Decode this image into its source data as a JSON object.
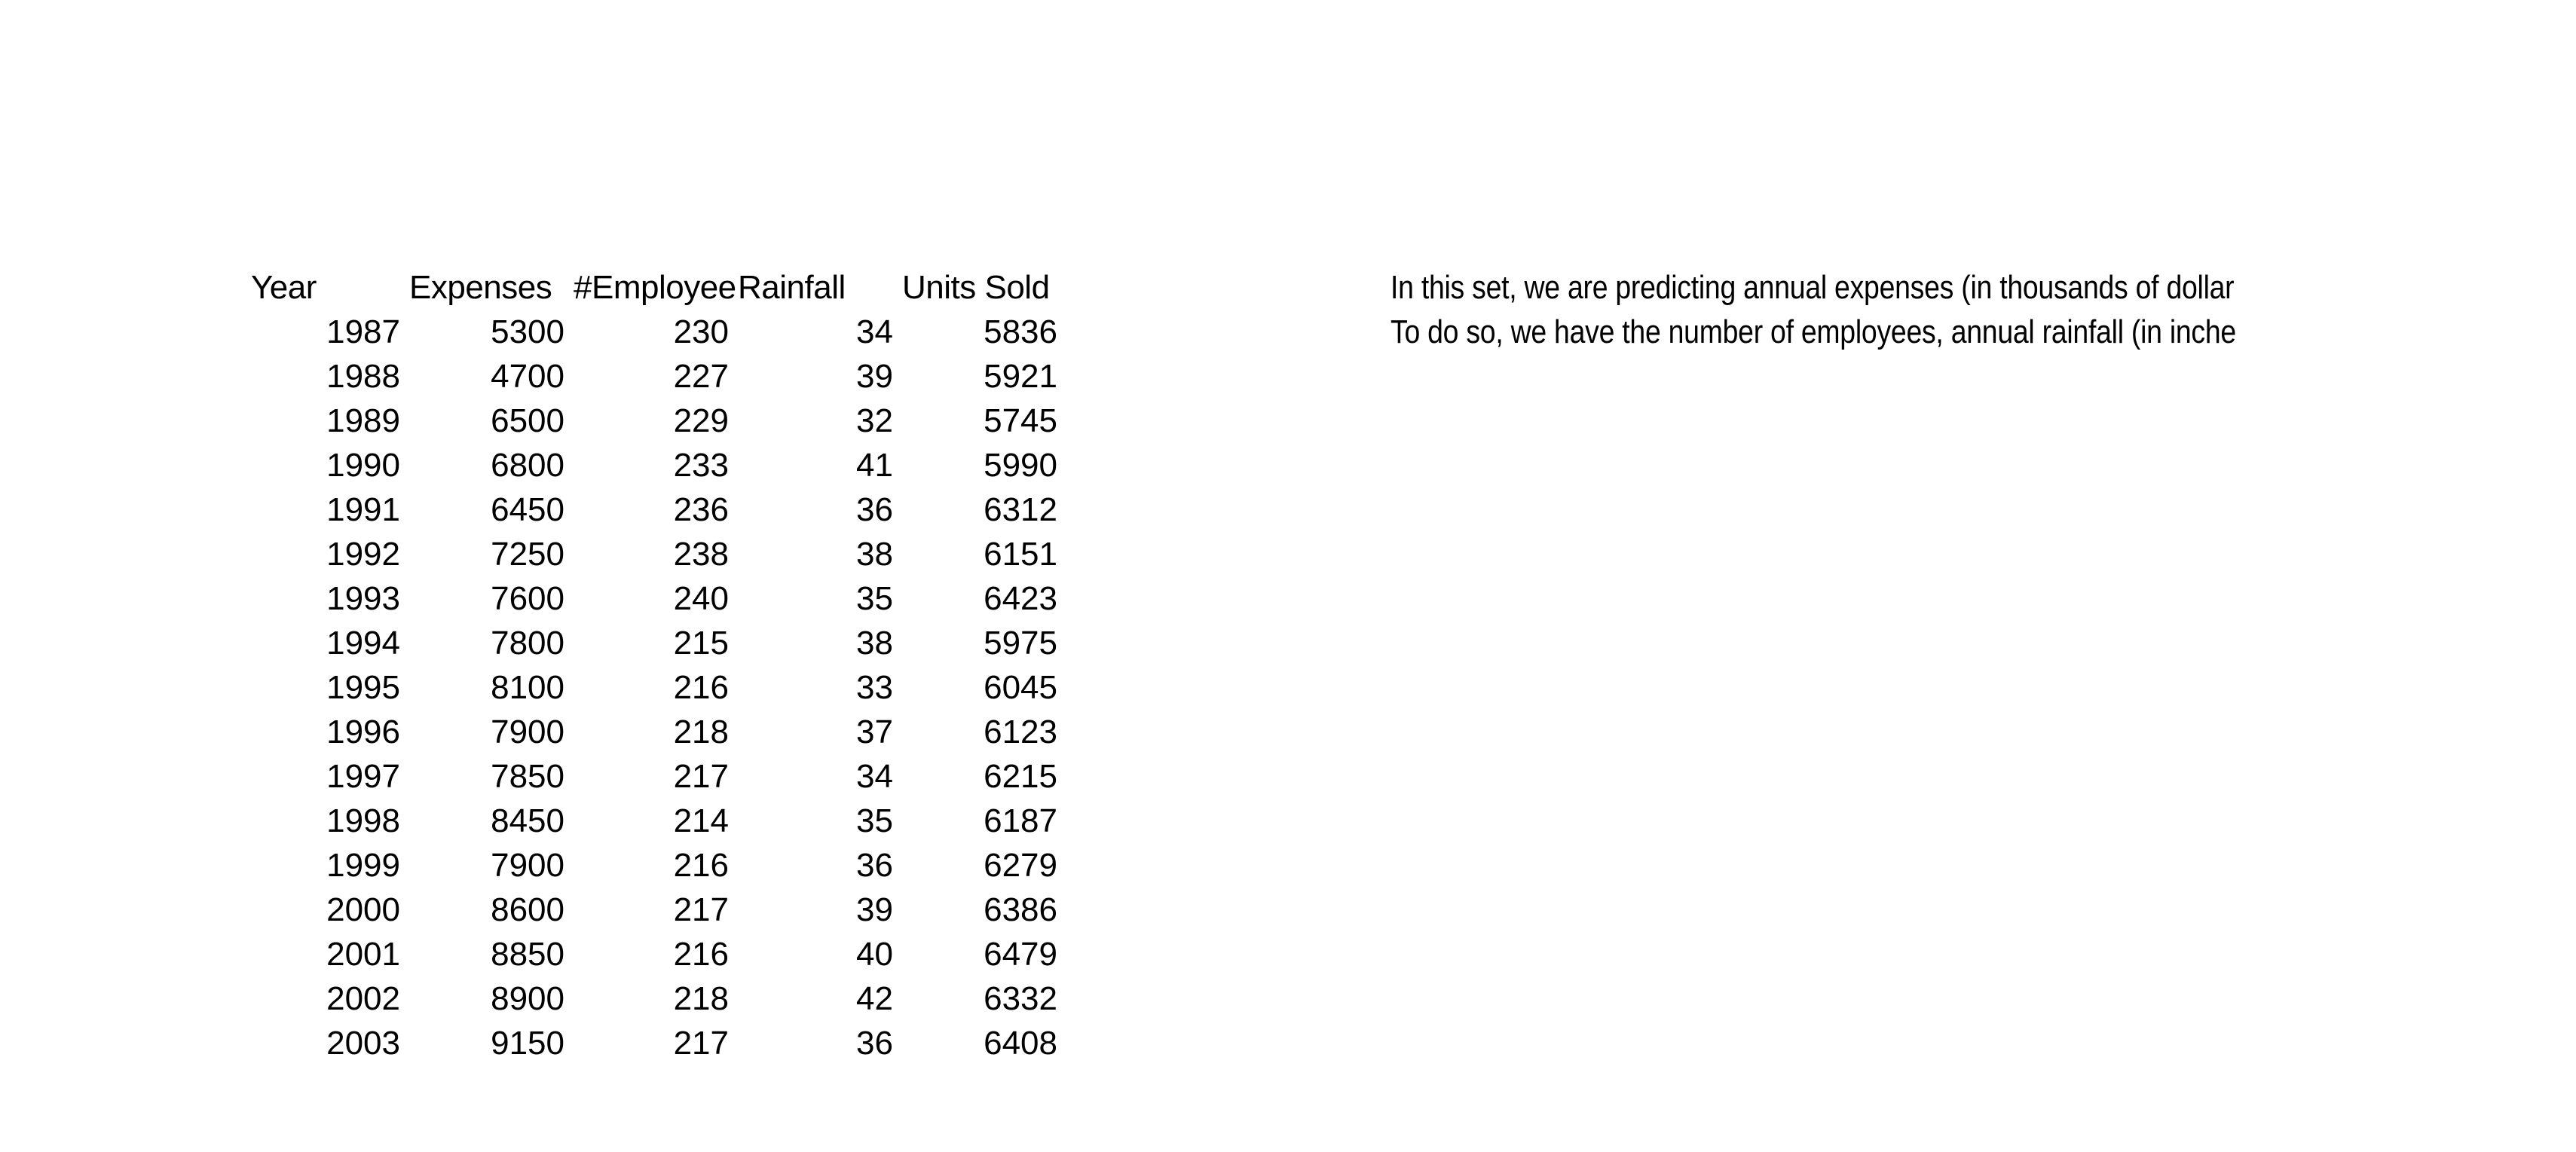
{
  "app": {
    "background_color": "#ffffff",
    "text_color": "#000000"
  },
  "table": {
    "headers": [
      "Year",
      "Expenses",
      "#Employee",
      "Rainfall",
      "Units Sold"
    ],
    "rows": [
      [
        "1987",
        "5300",
        "230",
        "34",
        "5836"
      ],
      [
        "1988",
        "4700",
        "227",
        "39",
        "5921"
      ],
      [
        "1989",
        "6500",
        "229",
        "32",
        "5745"
      ],
      [
        "1990",
        "6800",
        "233",
        "41",
        "5990"
      ],
      [
        "1991",
        "6450",
        "236",
        "36",
        "6312"
      ],
      [
        "1992",
        "7250",
        "238",
        "38",
        "6151"
      ],
      [
        "1993",
        "7600",
        "240",
        "35",
        "6423"
      ],
      [
        "1994",
        "7800",
        "215",
        "38",
        "5975"
      ],
      [
        "1995",
        "8100",
        "216",
        "33",
        "6045"
      ],
      [
        "1996",
        "7900",
        "218",
        "37",
        "6123"
      ],
      [
        "1997",
        "7850",
        "217",
        "34",
        "6215"
      ],
      [
        "1998",
        "8450",
        "214",
        "35",
        "6187"
      ],
      [
        "1999",
        "7900",
        "216",
        "36",
        "6279"
      ],
      [
        "2000",
        "8600",
        "217",
        "39",
        "6386"
      ],
      [
        "2001",
        "8850",
        "216",
        "40",
        "6479"
      ],
      [
        "2002",
        "8900",
        "218",
        "42",
        "6332"
      ],
      [
        "2003",
        "9150",
        "217",
        "36",
        "6408"
      ]
    ]
  },
  "note": {
    "lines": [
      "In this set, we are predicting annual expenses (in thousands of dollar",
      "To do so, we have the number of employees, annual rainfall (in inche"
    ]
  },
  "chart_data": {
    "type": "table",
    "columns": [
      "Year",
      "Expenses",
      "#Employee",
      "Rainfall",
      "Units Sold"
    ],
    "rows": [
      [
        1987,
        5300,
        230,
        34,
        5836
      ],
      [
        1988,
        4700,
        227,
        39,
        5921
      ],
      [
        1989,
        6500,
        229,
        32,
        5745
      ],
      [
        1990,
        6800,
        233,
        41,
        5990
      ],
      [
        1991,
        6450,
        236,
        36,
        6312
      ],
      [
        1992,
        7250,
        238,
        38,
        6151
      ],
      [
        1993,
        7600,
        240,
        35,
        6423
      ],
      [
        1994,
        7800,
        215,
        38,
        5975
      ],
      [
        1995,
        8100,
        216,
        33,
        6045
      ],
      [
        1996,
        7900,
        218,
        37,
        6123
      ],
      [
        1997,
        7850,
        217,
        34,
        6215
      ],
      [
        1998,
        8450,
        214,
        35,
        6187
      ],
      [
        1999,
        7900,
        216,
        36,
        6279
      ],
      [
        2000,
        8600,
        217,
        39,
        6386
      ],
      [
        2001,
        8850,
        216,
        40,
        6479
      ],
      [
        2002,
        8900,
        218,
        42,
        6332
      ],
      [
        2003,
        9150,
        217,
        36,
        6408
      ]
    ]
  }
}
